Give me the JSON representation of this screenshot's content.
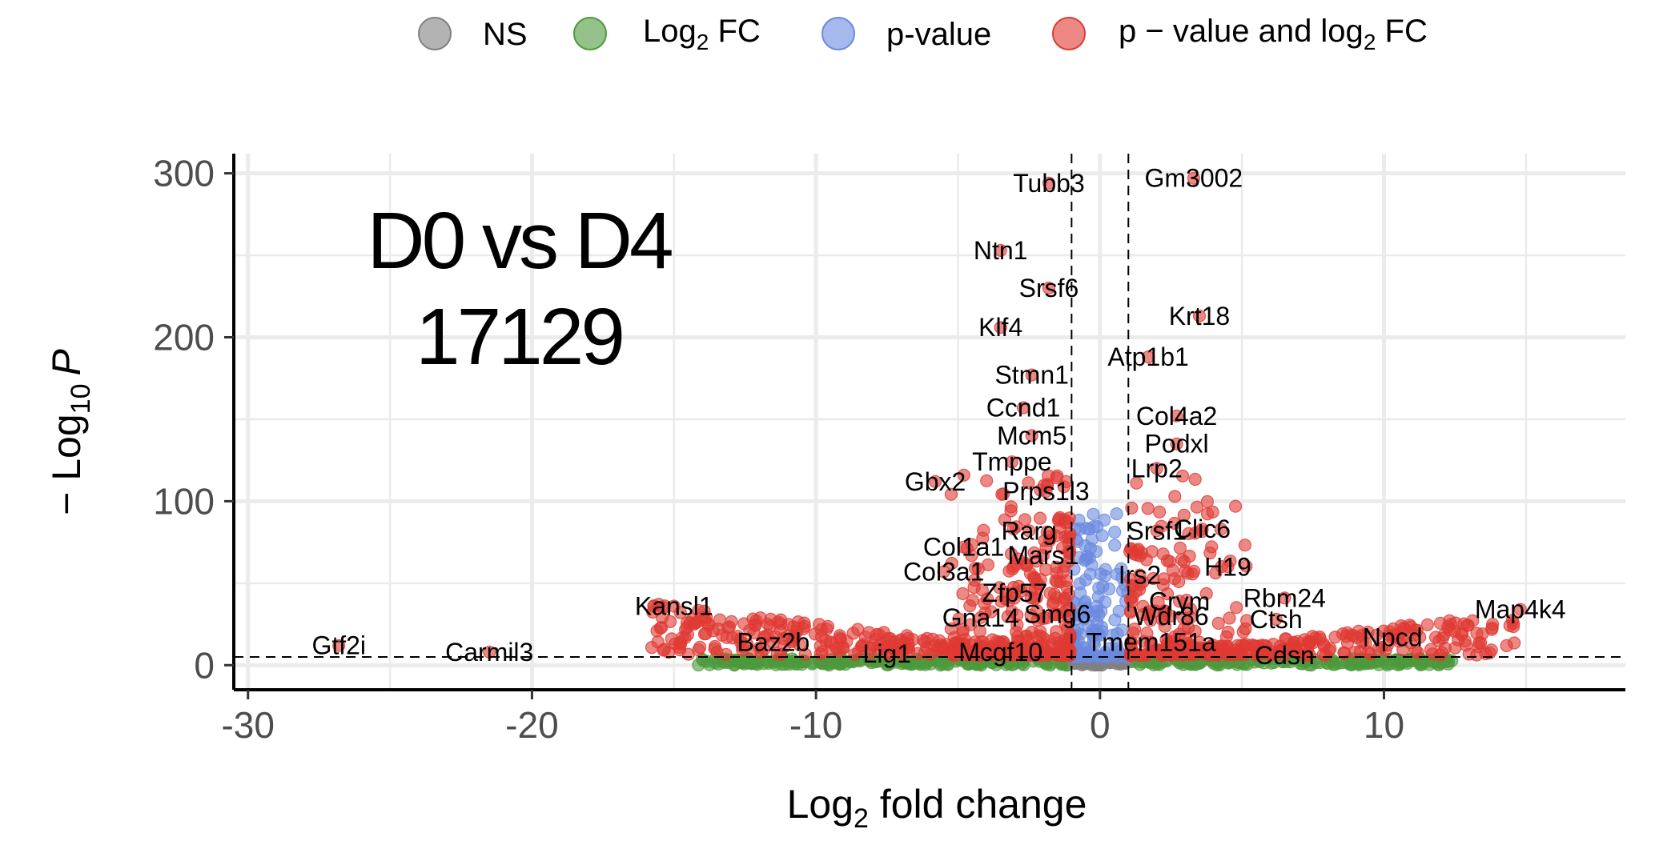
{
  "chart_data": {
    "type": "scatter",
    "subtype": "volcano",
    "title_lines": [
      "D0 vs D4",
      "17129"
    ],
    "xlabel": {
      "main": "Log",
      "sub": "2",
      "rest": " fold change"
    },
    "ylabel": {
      "prefix": "− Log",
      "sub": "10",
      "italic": "P"
    },
    "xlim": [
      -30.5,
      18.5
    ],
    "ylim": [
      -15,
      312
    ],
    "x_ticks": [
      -30,
      -20,
      -10,
      0,
      10
    ],
    "x_tick_labels": [
      "-30",
      "-20",
      "-10",
      "0",
      "10"
    ],
    "y_ticks": [
      0,
      100,
      200,
      300
    ],
    "y_tick_labels": [
      "0",
      "100",
      "200",
      "300"
    ],
    "thresholds": {
      "fc_cutoff": [
        -1,
        1
      ],
      "p_cutoff_neglog10": 5
    },
    "grid": true,
    "legend_position": "top",
    "legend": [
      {
        "key": "ns",
        "label": "NS",
        "color": "#808080"
      },
      {
        "key": "fc",
        "label": "Log",
        "sub": "2",
        "rest": " FC",
        "color": "#4d9a3c"
      },
      {
        "key": "p",
        "label": "p-value",
        "color": "#6a8ae0"
      },
      {
        "key": "both",
        "label": "p − value and log",
        "sub": "2",
        "rest": " FC",
        "color": "#e03a33"
      }
    ],
    "labeled_genes": [
      {
        "name": "Tubb3",
        "x": -1.8,
        "y": 294
      },
      {
        "name": "Gm3002",
        "x": 3.3,
        "y": 297
      },
      {
        "name": "Ntn1",
        "x": -3.5,
        "y": 253
      },
      {
        "name": "Srsf6",
        "x": -1.8,
        "y": 230
      },
      {
        "name": "Krt18",
        "x": 3.5,
        "y": 213
      },
      {
        "name": "Klf4",
        "x": -3.5,
        "y": 206
      },
      {
        "name": "Atp1b1",
        "x": 1.7,
        "y": 188
      },
      {
        "name": "Stmn1",
        "x": -2.4,
        "y": 177
      },
      {
        "name": "Col4a2",
        "x": 2.7,
        "y": 152
      },
      {
        "name": "Ccnd1",
        "x": -2.7,
        "y": 157
      },
      {
        "name": "Mcm5",
        "x": -2.4,
        "y": 140
      },
      {
        "name": "Podxl",
        "x": 2.7,
        "y": 135
      },
      {
        "name": "Tmppe",
        "x": -3.1,
        "y": 124
      },
      {
        "name": "Lrp2",
        "x": 2.0,
        "y": 120
      },
      {
        "name": "Gbx2",
        "x": -5.8,
        "y": 112
      },
      {
        "name": "Prps1l3",
        "x": -1.9,
        "y": 106
      },
      {
        "name": "Clic6",
        "x": 3.6,
        "y": 83
      },
      {
        "name": "Srsf1",
        "x": 2.0,
        "y": 82
      },
      {
        "name": "Rarg",
        "x": -2.5,
        "y": 82
      },
      {
        "name": "Col1a1",
        "x": -4.8,
        "y": 72
      },
      {
        "name": "Mars1",
        "x": -2.0,
        "y": 67
      },
      {
        "name": "H19",
        "x": 4.5,
        "y": 60
      },
      {
        "name": "Col3a1",
        "x": -5.5,
        "y": 57
      },
      {
        "name": "Irs2",
        "x": 1.4,
        "y": 55
      },
      {
        "name": "Zfp57",
        "x": -3.0,
        "y": 44
      },
      {
        "name": "Rbm24",
        "x": 6.5,
        "y": 41
      },
      {
        "name": "Crym",
        "x": 2.8,
        "y": 39
      },
      {
        "name": "Kansl1",
        "x": -15.0,
        "y": 36
      },
      {
        "name": "Map4k4",
        "x": 14.8,
        "y": 34
      },
      {
        "name": "Smg6",
        "x": -1.5,
        "y": 31
      },
      {
        "name": "Wdr86",
        "x": 2.5,
        "y": 30
      },
      {
        "name": "Gna14",
        "x": -4.2,
        "y": 29
      },
      {
        "name": "Ctsh",
        "x": 6.2,
        "y": 28
      },
      {
        "name": "Npcd",
        "x": 10.3,
        "y": 17
      },
      {
        "name": "Tmem151a",
        "x": 1.8,
        "y": 14
      },
      {
        "name": "Baz2b",
        "x": -11.5,
        "y": 14
      },
      {
        "name": "Gtf2i",
        "x": -26.8,
        "y": 12
      },
      {
        "name": "Carmil3",
        "x": -21.5,
        "y": 8
      },
      {
        "name": "Lig1",
        "x": -7.5,
        "y": 7
      },
      {
        "name": "Mcgf10",
        "x": -3.5,
        "y": 8
      },
      {
        "name": "Cdsn",
        "x": 6.5,
        "y": 6
      }
    ]
  }
}
